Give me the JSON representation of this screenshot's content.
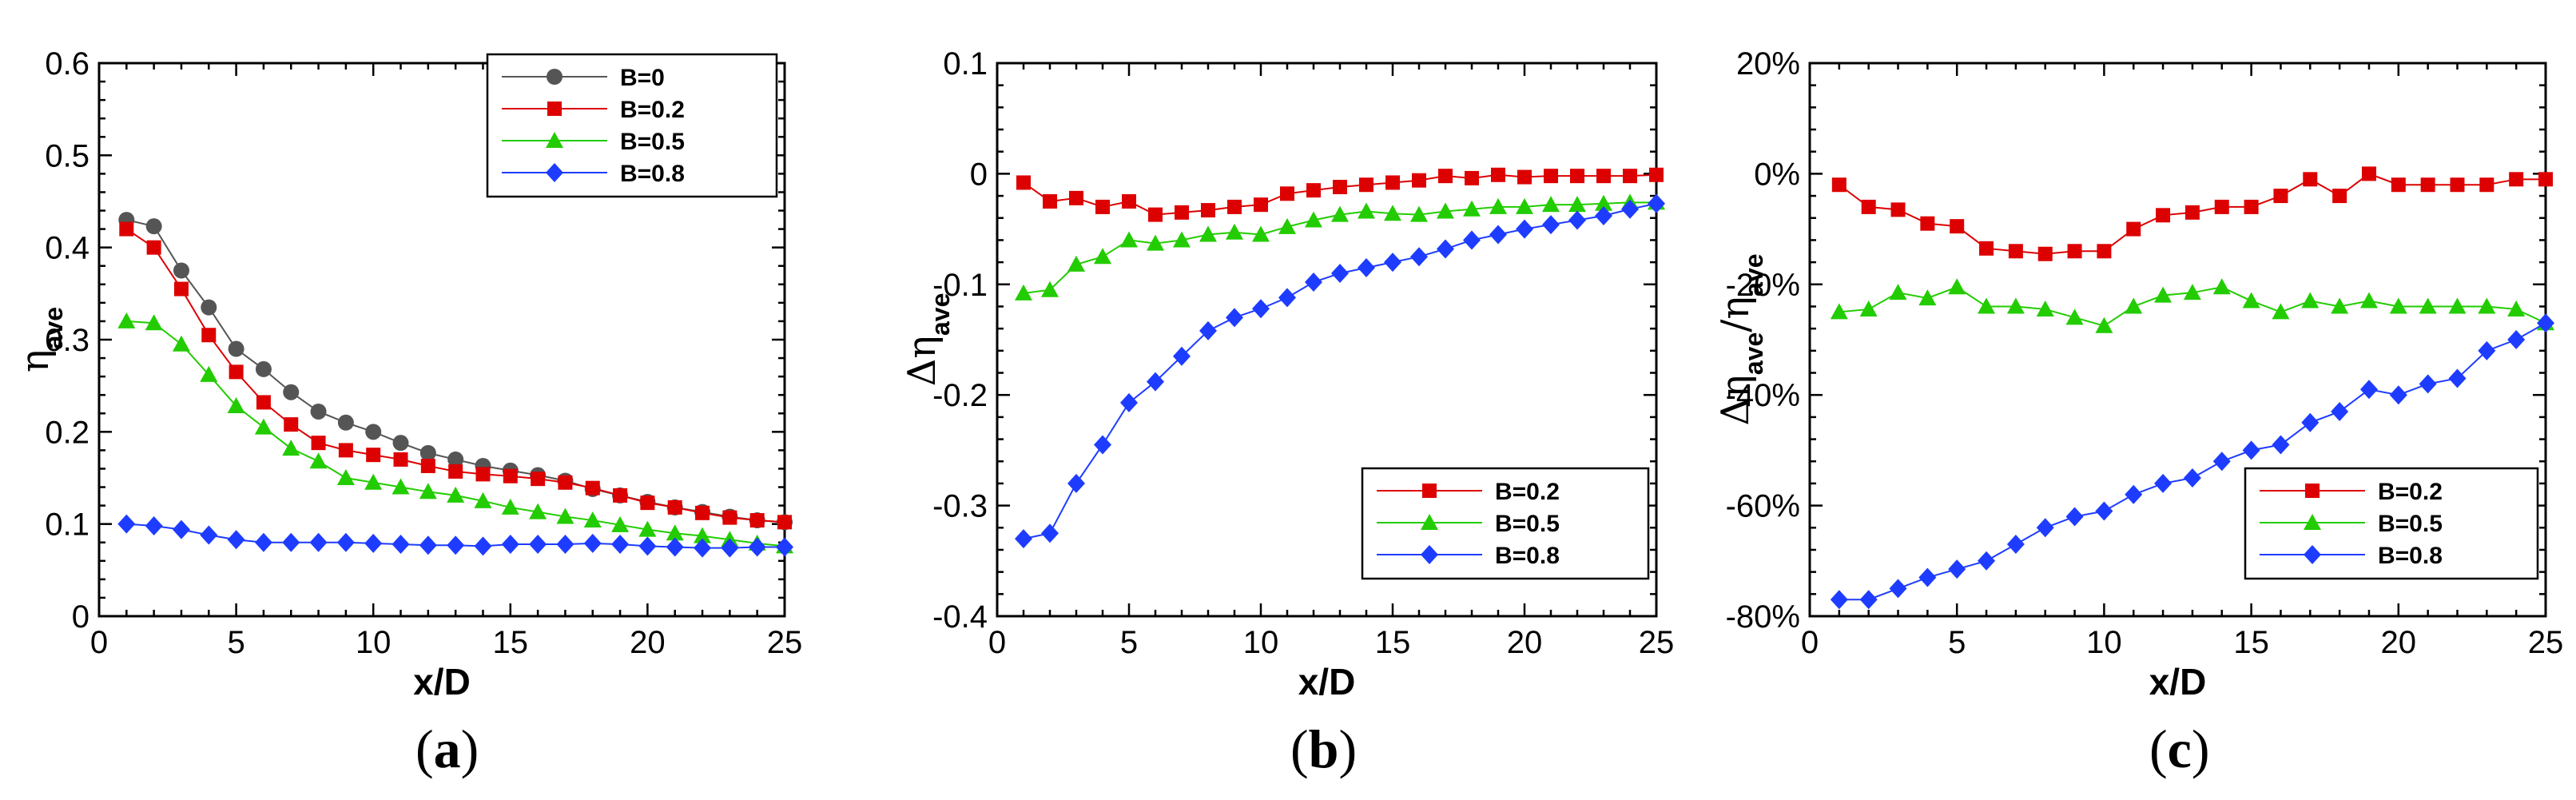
{
  "figure": {
    "panel_labels": [
      "(a)",
      "(b)",
      "(c)"
    ]
  },
  "chart_data": [
    {
      "type": "line",
      "panel": "(a)",
      "xlabel": "x/D",
      "ylabel": "η_ave",
      "xlim": [
        0,
        25
      ],
      "ylim": [
        0,
        0.6
      ],
      "xticks": [
        0,
        5,
        10,
        15,
        20,
        25
      ],
      "xtick_labels": [
        "0",
        "5",
        "10",
        "15",
        "20",
        "25"
      ],
      "yticks": [
        0,
        0.1,
        0.2,
        0.3,
        0.4,
        0.5,
        0.6
      ],
      "ytick_labels": [
        "0",
        "0.1",
        "0.2",
        "0.3",
        "0.4",
        "0.5",
        "0.6"
      ],
      "legend": "top-right",
      "x": [
        1,
        2,
        3,
        4,
        5,
        6,
        7,
        8,
        9,
        10,
        11,
        12,
        13,
        14,
        15,
        16,
        17,
        18,
        19,
        20,
        21,
        22,
        23,
        24,
        25
      ],
      "series": [
        {
          "name": "B=0",
          "color": "#555555",
          "marker": "circle",
          "values": [
            0.43,
            0.423,
            0.375,
            0.335,
            0.29,
            0.268,
            0.243,
            0.222,
            0.21,
            0.2,
            0.188,
            0.177,
            0.17,
            0.163,
            0.158,
            0.153,
            0.147,
            0.138,
            0.131,
            0.124,
            0.118,
            0.113,
            0.108,
            0.104,
            0.102
          ]
        },
        {
          "name": "B=0.2",
          "color": "#dd0000",
          "marker": "square",
          "values": [
            0.42,
            0.4,
            0.355,
            0.305,
            0.265,
            0.232,
            0.208,
            0.188,
            0.18,
            0.175,
            0.17,
            0.163,
            0.157,
            0.154,
            0.152,
            0.149,
            0.145,
            0.139,
            0.131,
            0.123,
            0.118,
            0.112,
            0.107,
            0.104,
            0.102
          ]
        },
        {
          "name": "B=0.5",
          "color": "#22cc00",
          "marker": "triangle",
          "values": [
            0.32,
            0.318,
            0.295,
            0.262,
            0.228,
            0.205,
            0.182,
            0.168,
            0.15,
            0.145,
            0.14,
            0.135,
            0.131,
            0.125,
            0.118,
            0.113,
            0.108,
            0.104,
            0.099,
            0.094,
            0.09,
            0.087,
            0.083,
            0.079,
            0.076
          ]
        },
        {
          "name": "B=0.8",
          "color": "#1e3cff",
          "marker": "diamond",
          "values": [
            0.1,
            0.098,
            0.094,
            0.088,
            0.083,
            0.08,
            0.08,
            0.08,
            0.08,
            0.079,
            0.078,
            0.077,
            0.077,
            0.076,
            0.078,
            0.078,
            0.078,
            0.079,
            0.078,
            0.076,
            0.075,
            0.074,
            0.074,
            0.075,
            0.075
          ]
        }
      ]
    },
    {
      "type": "line",
      "panel": "(b)",
      "xlabel": "x/D",
      "ylabel": "Δη_ave",
      "xlim": [
        0,
        25
      ],
      "ylim": [
        -0.4,
        0.1
      ],
      "xticks": [
        0,
        5,
        10,
        15,
        20,
        25
      ],
      "xtick_labels": [
        "0",
        "5",
        "10",
        "15",
        "20",
        "25"
      ],
      "yticks": [
        -0.4,
        -0.3,
        -0.2,
        -0.1,
        0,
        0.1
      ],
      "ytick_labels": [
        "-0.4",
        "-0.3",
        "-0.2",
        "-0.1",
        "0",
        "0.1"
      ],
      "legend": "bottom-right",
      "x": [
        1,
        2,
        3,
        4,
        5,
        6,
        7,
        8,
        9,
        10,
        11,
        12,
        13,
        14,
        15,
        16,
        17,
        18,
        19,
        20,
        21,
        22,
        23,
        24,
        25
      ],
      "series": [
        {
          "name": "B=0.2",
          "color": "#dd0000",
          "marker": "square",
          "values": [
            -0.008,
            -0.025,
            -0.022,
            -0.03,
            -0.025,
            -0.037,
            -0.035,
            -0.033,
            -0.03,
            -0.028,
            -0.018,
            -0.015,
            -0.012,
            -0.01,
            -0.008,
            -0.006,
            -0.002,
            -0.004,
            -0.001,
            -0.003,
            -0.002,
            -0.002,
            -0.002,
            -0.002,
            -0.001
          ]
        },
        {
          "name": "B=0.5",
          "color": "#22cc00",
          "marker": "triangle",
          "values": [
            -0.108,
            -0.105,
            -0.082,
            -0.075,
            -0.06,
            -0.063,
            -0.06,
            -0.055,
            -0.053,
            -0.055,
            -0.048,
            -0.042,
            -0.037,
            -0.034,
            -0.036,
            -0.037,
            -0.034,
            -0.032,
            -0.03,
            -0.03,
            -0.028,
            -0.028,
            -0.027,
            -0.026,
            -0.026
          ]
        },
        {
          "name": "B=0.8",
          "color": "#1e3cff",
          "marker": "diamond",
          "values": [
            -0.33,
            -0.325,
            -0.28,
            -0.245,
            -0.207,
            -0.188,
            -0.165,
            -0.142,
            -0.13,
            -0.122,
            -0.112,
            -0.098,
            -0.09,
            -0.085,
            -0.08,
            -0.075,
            -0.068,
            -0.06,
            -0.055,
            -0.05,
            -0.046,
            -0.042,
            -0.038,
            -0.032,
            -0.027
          ]
        }
      ]
    },
    {
      "type": "line",
      "panel": "(c)",
      "xlabel": "x/D",
      "ylabel": "Δη_ave/η_ave",
      "xlim": [
        0,
        25
      ],
      "ylim": [
        -80,
        20
      ],
      "xticks": [
        0,
        5,
        10,
        15,
        20,
        25
      ],
      "xtick_labels": [
        "0",
        "5",
        "10",
        "15",
        "20",
        "25"
      ],
      "yticks": [
        -80,
        -60,
        -40,
        -20,
        0,
        20
      ],
      "ytick_labels": [
        "-80%",
        "-60%",
        "-40%",
        "-20%",
        "0%",
        "20%"
      ],
      "legend": "bottom-right",
      "x": [
        1,
        2,
        3,
        4,
        5,
        6,
        7,
        8,
        9,
        10,
        11,
        12,
        13,
        14,
        15,
        16,
        17,
        18,
        19,
        20,
        21,
        22,
        23,
        24,
        25
      ],
      "series": [
        {
          "name": "B=0.2",
          "color": "#dd0000",
          "marker": "square",
          "values": [
            -2,
            -6,
            -6.5,
            -9,
            -9.5,
            -13.5,
            -14,
            -14.5,
            -14,
            -14,
            -10,
            -7.5,
            -7,
            -6,
            -6,
            -4,
            -1,
            -4,
            0,
            -2,
            -2,
            -2,
            -2,
            -1,
            -1
          ]
        },
        {
          "name": "B=0.5",
          "color": "#22cc00",
          "marker": "triangle",
          "values": [
            -25,
            -24.5,
            -21.5,
            -22.5,
            -20.5,
            -24,
            -24,
            -24.5,
            -26,
            -27.5,
            -24,
            -22,
            -21.5,
            -20.5,
            -23,
            -25,
            -23,
            -24,
            -23,
            -24,
            -24,
            -24,
            -24,
            -24.5,
            -27
          ]
        },
        {
          "name": "B=0.8",
          "color": "#1e3cff",
          "marker": "diamond",
          "values": [
            -77,
            -77,
            -75,
            -73,
            -71.5,
            -70,
            -67,
            -64,
            -62,
            -61,
            -58,
            -56,
            -55,
            -52,
            -50,
            -49,
            -45,
            -43,
            -39,
            -40,
            -38,
            -37,
            -32,
            -30,
            -27
          ]
        }
      ]
    }
  ]
}
